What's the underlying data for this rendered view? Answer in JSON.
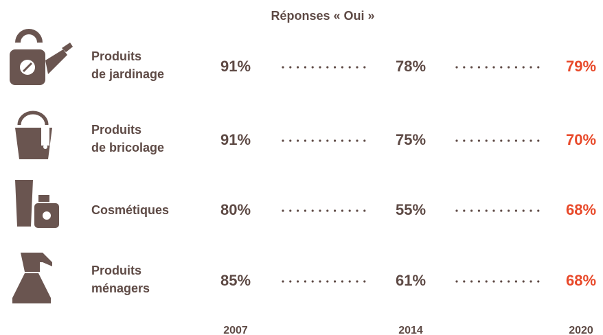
{
  "title": "Réponses « Oui »",
  "years": [
    "2007",
    "2014",
    "2020"
  ],
  "rows": [
    {
      "label": [
        "Produits",
        "de jardinage"
      ],
      "values": [
        "91%",
        "78%",
        "79%"
      ]
    },
    {
      "label": [
        "Produits",
        "de bricolage"
      ],
      "values": [
        "91%",
        "75%",
        "70%"
      ]
    },
    {
      "label": [
        "Cosmétiques"
      ],
      "values": [
        "80%",
        "55%",
        "68%"
      ]
    },
    {
      "label": [
        "Produits",
        "ménagers"
      ],
      "values": [
        "85%",
        "61%",
        "68%"
      ]
    }
  ]
}
